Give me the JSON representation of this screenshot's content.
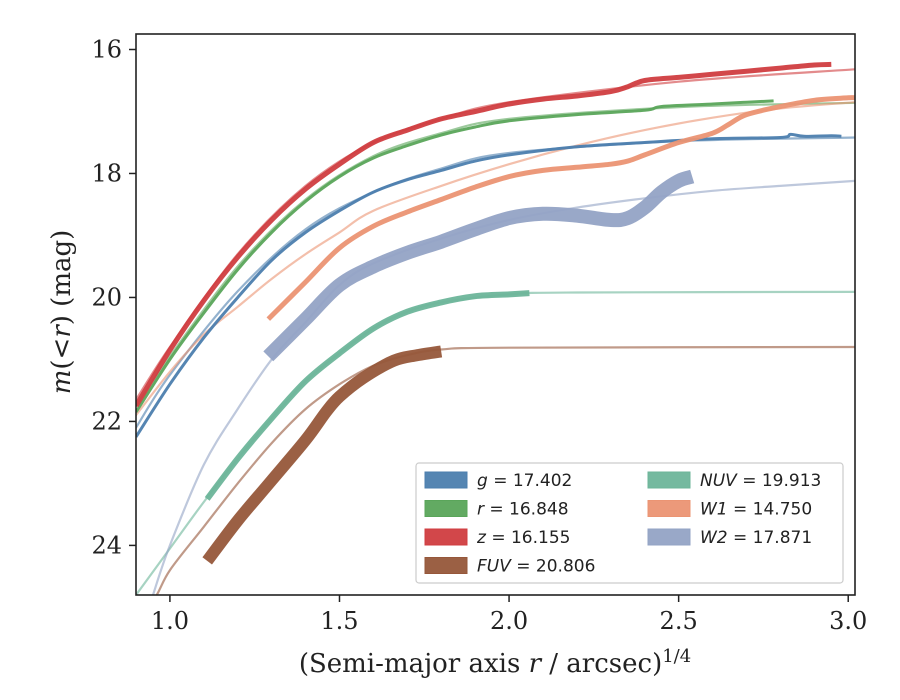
{
  "chart_data": {
    "type": "line",
    "xlabel_main": "(Semi-major axis ",
    "xlabel_var": "r",
    "xlabel_tail": " / arcsec)",
    "xlabel_sup": "1/4",
    "ylabel_main": "m",
    "ylabel_var": "r",
    "ylabel_unit": "(mag)",
    "xlim": [
      0.9,
      3.02
    ],
    "ylim": [
      24.8,
      15.75
    ],
    "y_inverted": true,
    "xticks": [
      "1.0",
      "1.5",
      "2.0",
      "2.5",
      "3.0"
    ],
    "xtick_values": [
      1.0,
      1.5,
      2.0,
      2.5,
      3.0
    ],
    "yticks": [
      "16",
      "18",
      "20",
      "22",
      "24"
    ],
    "ytick_values": [
      16,
      18,
      20,
      22,
      24
    ],
    "legend_position": "lower-right",
    "series": [
      {
        "name": "g",
        "legend_value": "17.402",
        "color": "#4c7eae",
        "width": 3,
        "data": [
          [
            0.9,
            22.25
          ],
          [
            1.0,
            21.4
          ],
          [
            1.1,
            20.65
          ],
          [
            1.2,
            20.0
          ],
          [
            1.3,
            19.4
          ],
          [
            1.4,
            18.95
          ],
          [
            1.5,
            18.6
          ],
          [
            1.6,
            18.3
          ],
          [
            1.7,
            18.1
          ],
          [
            1.8,
            17.95
          ],
          [
            1.9,
            17.8
          ],
          [
            2.0,
            17.7
          ],
          [
            2.2,
            17.57
          ],
          [
            2.4,
            17.5
          ],
          [
            2.6,
            17.44
          ],
          [
            2.8,
            17.42
          ],
          [
            2.83,
            17.37
          ],
          [
            2.87,
            17.4
          ],
          [
            2.95,
            17.39
          ],
          [
            2.98,
            17.4
          ]
        ],
        "model": [
          [
            0.9,
            22.1
          ],
          [
            1.0,
            21.25
          ],
          [
            1.2,
            19.9
          ],
          [
            1.4,
            18.9
          ],
          [
            1.6,
            18.3
          ],
          [
            1.8,
            17.92
          ],
          [
            2.0,
            17.67
          ],
          [
            2.5,
            17.48
          ],
          [
            3.02,
            17.42
          ]
        ]
      },
      {
        "name": "r",
        "legend_value": "16.848",
        "color": "#5aa55a",
        "width": 3,
        "data": [
          [
            0.9,
            21.85
          ],
          [
            1.0,
            21.0
          ],
          [
            1.1,
            20.25
          ],
          [
            1.2,
            19.55
          ],
          [
            1.3,
            18.95
          ],
          [
            1.4,
            18.45
          ],
          [
            1.5,
            18.05
          ],
          [
            1.6,
            17.75
          ],
          [
            1.7,
            17.55
          ],
          [
            1.8,
            17.38
          ],
          [
            1.9,
            17.25
          ],
          [
            2.0,
            17.15
          ],
          [
            2.2,
            17.05
          ],
          [
            2.4,
            16.98
          ],
          [
            2.45,
            16.92
          ],
          [
            2.6,
            16.88
          ],
          [
            2.7,
            16.85
          ],
          [
            2.78,
            16.83
          ]
        ],
        "model": [
          [
            0.9,
            21.75
          ],
          [
            1.0,
            20.95
          ],
          [
            1.2,
            19.5
          ],
          [
            1.4,
            18.42
          ],
          [
            1.6,
            17.72
          ],
          [
            1.8,
            17.35
          ],
          [
            2.0,
            17.12
          ],
          [
            2.5,
            16.93
          ],
          [
            3.02,
            16.86
          ]
        ]
      },
      {
        "name": "z",
        "legend_value": "16.155",
        "color": "#d03d40",
        "width": 5,
        "data": [
          [
            0.9,
            21.75
          ],
          [
            1.0,
            20.85
          ],
          [
            1.1,
            20.05
          ],
          [
            1.2,
            19.35
          ],
          [
            1.3,
            18.75
          ],
          [
            1.4,
            18.25
          ],
          [
            1.5,
            17.85
          ],
          [
            1.6,
            17.5
          ],
          [
            1.7,
            17.3
          ],
          [
            1.8,
            17.12
          ],
          [
            1.9,
            17.0
          ],
          [
            2.0,
            16.88
          ],
          [
            2.1,
            16.8
          ],
          [
            2.2,
            16.75
          ],
          [
            2.3,
            16.68
          ],
          [
            2.35,
            16.6
          ],
          [
            2.4,
            16.5
          ],
          [
            2.5,
            16.45
          ],
          [
            2.6,
            16.4
          ],
          [
            2.7,
            16.35
          ],
          [
            2.8,
            16.3
          ],
          [
            2.9,
            16.25
          ],
          [
            2.95,
            16.24
          ]
        ],
        "model": [
          [
            0.9,
            21.65
          ],
          [
            1.0,
            20.8
          ],
          [
            1.2,
            19.3
          ],
          [
            1.4,
            18.2
          ],
          [
            1.6,
            17.5
          ],
          [
            1.8,
            17.12
          ],
          [
            2.0,
            16.85
          ],
          [
            2.5,
            16.52
          ],
          [
            3.02,
            16.32
          ]
        ]
      },
      {
        "name": "FUV",
        "legend_value": "20.806",
        "color": "#96573a",
        "width": 12,
        "data": [
          [
            1.11,
            24.25
          ],
          [
            1.2,
            23.6
          ],
          [
            1.3,
            22.95
          ],
          [
            1.4,
            22.3
          ],
          [
            1.46,
            21.85
          ],
          [
            1.5,
            21.6
          ],
          [
            1.57,
            21.3
          ],
          [
            1.66,
            21.02
          ],
          [
            1.73,
            20.93
          ],
          [
            1.8,
            20.87
          ]
        ],
        "model": [
          [
            0.85,
            25.6
          ],
          [
            0.95,
            24.9
          ],
          [
            1.0,
            24.4
          ],
          [
            1.1,
            23.7
          ],
          [
            1.2,
            23.0
          ],
          [
            1.3,
            22.35
          ],
          [
            1.4,
            21.8
          ],
          [
            1.5,
            21.4
          ],
          [
            1.6,
            21.1
          ],
          [
            1.7,
            20.93
          ],
          [
            1.8,
            20.84
          ],
          [
            2.0,
            20.81
          ],
          [
            3.02,
            20.8
          ]
        ]
      },
      {
        "name": "NUV",
        "legend_value": "19.913",
        "color": "#6db59a",
        "width": 6,
        "data": [
          [
            1.11,
            23.25
          ],
          [
            1.2,
            22.6
          ],
          [
            1.3,
            21.95
          ],
          [
            1.4,
            21.35
          ],
          [
            1.5,
            20.9
          ],
          [
            1.6,
            20.5
          ],
          [
            1.7,
            20.23
          ],
          [
            1.8,
            20.08
          ],
          [
            1.9,
            19.98
          ],
          [
            2.0,
            19.95
          ],
          [
            2.06,
            19.93
          ]
        ],
        "model": [
          [
            0.9,
            24.8
          ],
          [
            1.0,
            24.05
          ],
          [
            1.1,
            23.3
          ],
          [
            1.2,
            22.6
          ],
          [
            1.3,
            21.95
          ],
          [
            1.4,
            21.35
          ],
          [
            1.5,
            20.9
          ],
          [
            1.6,
            20.5
          ],
          [
            1.7,
            20.23
          ],
          [
            1.8,
            20.08
          ],
          [
            2.0,
            19.95
          ],
          [
            2.2,
            19.92
          ],
          [
            3.02,
            19.91
          ]
        ]
      },
      {
        "name": "W1",
        "legend_value": "14.750",
        "color": "#eb9473",
        "width": 5,
        "data": [
          [
            1.29,
            20.35
          ],
          [
            1.4,
            19.75
          ],
          [
            1.5,
            19.2
          ],
          [
            1.6,
            18.85
          ],
          [
            1.7,
            18.62
          ],
          [
            1.8,
            18.42
          ],
          [
            1.9,
            18.22
          ],
          [
            2.0,
            18.05
          ],
          [
            2.1,
            17.95
          ],
          [
            2.2,
            17.9
          ],
          [
            2.3,
            17.85
          ],
          [
            2.35,
            17.8
          ],
          [
            2.4,
            17.7
          ],
          [
            2.5,
            17.5
          ],
          [
            2.6,
            17.35
          ],
          [
            2.65,
            17.2
          ],
          [
            2.7,
            17.05
          ],
          [
            2.8,
            16.92
          ],
          [
            2.9,
            16.82
          ],
          [
            3.0,
            16.78
          ],
          [
            3.02,
            16.78
          ]
        ],
        "model": [
          [
            0.9,
            21.9
          ],
          [
            1.0,
            21.2
          ],
          [
            1.1,
            20.6
          ],
          [
            1.2,
            20.15
          ],
          [
            1.3,
            19.7
          ],
          [
            1.4,
            19.3
          ],
          [
            1.5,
            18.95
          ],
          [
            1.6,
            18.6
          ],
          [
            1.8,
            18.2
          ],
          [
            2.0,
            17.85
          ],
          [
            2.2,
            17.55
          ],
          [
            2.4,
            17.3
          ],
          [
            2.6,
            17.1
          ],
          [
            2.8,
            16.95
          ],
          [
            3.02,
            16.85
          ]
        ]
      },
      {
        "name": "W2",
        "legend_value": "17.871",
        "color": "#93a3c5",
        "width": 14,
        "data": [
          [
            1.29,
            20.95
          ],
          [
            1.4,
            20.35
          ],
          [
            1.5,
            19.8
          ],
          [
            1.6,
            19.5
          ],
          [
            1.7,
            19.28
          ],
          [
            1.8,
            19.1
          ],
          [
            1.9,
            18.9
          ],
          [
            2.0,
            18.72
          ],
          [
            2.1,
            18.65
          ],
          [
            2.2,
            18.68
          ],
          [
            2.3,
            18.75
          ],
          [
            2.35,
            18.72
          ],
          [
            2.4,
            18.55
          ],
          [
            2.45,
            18.3
          ],
          [
            2.5,
            18.12
          ],
          [
            2.54,
            18.05
          ]
        ],
        "model": [
          [
            0.95,
            24.8
          ],
          [
            1.0,
            24.0
          ],
          [
            1.1,
            22.7
          ],
          [
            1.2,
            21.8
          ],
          [
            1.3,
            21.0
          ],
          [
            1.4,
            20.4
          ],
          [
            1.5,
            19.8
          ],
          [
            1.6,
            19.45
          ],
          [
            1.8,
            19.05
          ],
          [
            2.0,
            18.75
          ],
          [
            2.2,
            18.55
          ],
          [
            2.4,
            18.4
          ],
          [
            2.6,
            18.28
          ],
          [
            2.8,
            18.2
          ],
          [
            3.02,
            18.12
          ]
        ]
      }
    ]
  }
}
